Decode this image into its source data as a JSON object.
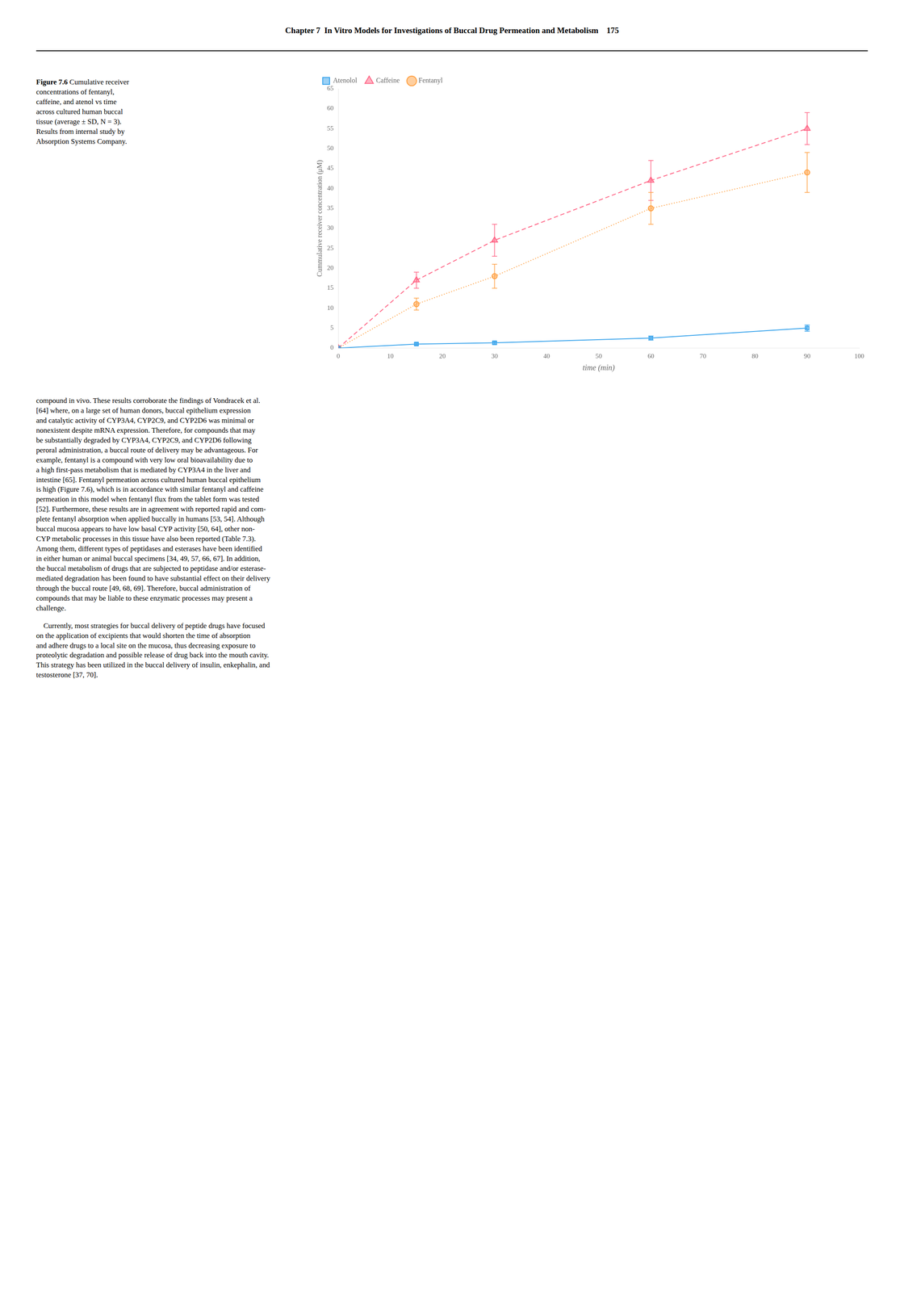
{
  "header": "Chapter 7  In Vitro Models for Investigations of Buccal Drug Permeation and Metabolism    175",
  "caption_bold": "Figure 7.6",
  "caption": " Cumulative receiver\nconcentrations of fentanyl,\ncaffeine, and atenol vs time\nacross cultured human buccal\ntissue (average ± SD, N = 3).\nResults from internal study by\nAbsorption Systems Company.",
  "body": [
    "compound in vivo. These results corroborate the findings of Vondracek et al.\n[64] where, on a large set of human donors, buccal epithelium expression\nand catalytic activity of CYP3A4, CYP2C9, and CYP2D6 was minimal or\nnonexistent despite mRNA expression. Therefore, for compounds that may\nbe substantially degraded by CYP3A4, CYP2C9, and CYP2D6 following\nperoral administration, a buccal route of delivery may be advantageous. For\nexample, fentanyl is a compound with very low oral bioavailability due to\na high first-pass metabolism that is mediated by CYP3A4 in the liver and\nintestine [65]. Fentanyl permeation across cultured human buccal epithelium\nis high (Figure 7.6), which is in accordance with similar fentanyl and caffeine\npermeation in this model when fentanyl flux from the tablet form was tested\n[52]. Furthermore, these results are in agreement with reported rapid and com-\nplete fentanyl absorption when applied buccally in humans [53, 54]. Although\nbuccal mucosa appears to have low basal CYP activity [50, 64], other non-\nCYP metabolic processes in this tissue have also been reported (Table 7.3).\nAmong them, different types of peptidases and esterases have been identified\nin either human or animal buccal specimens [34, 49, 57, 66, 67]. In addition,\nthe buccal metabolism of drugs that are subjected to peptidase and/or esterase-\nmediated degradation has been found to have substantial effect on their delivery\nthrough the buccal route [49, 68, 69]. Therefore, buccal administration of\ncompounds that may be liable to these enzymatic processes may present a\nchallenge.",
    "    Currently, most strategies for buccal delivery of peptide drugs have focused\non the application of excipients that would shorten the time of absorption\nand adhere drugs to a local site on the mucosa, thus decreasing exposure to\nproteolytic degradation and possible release of drug back into the mouth cavity.\nThis strategy has been utilized in the buccal delivery of insulin, enkephalin, and\ntestosterone [37, 70]."
  ],
  "chart_data": {
    "type": "line",
    "xlabel": "time (min)",
    "ylabel": "Cummulative receiver concentration (μM)",
    "xlim": [
      0,
      100
    ],
    "ylim": [
      0,
      65
    ],
    "xticks": [
      0,
      10,
      20,
      30,
      40,
      50,
      60,
      70,
      80,
      90,
      100
    ],
    "yticks": [
      0,
      5,
      10,
      15,
      20,
      25,
      30,
      35,
      40,
      45,
      50,
      55,
      60,
      65
    ],
    "grid": false,
    "legend": "upper left",
    "x": [
      0,
      15,
      30,
      60,
      90
    ],
    "series": [
      {
        "name": "Atenolol",
        "values": [
          0,
          1.0,
          1.3,
          2.5,
          5.0
        ],
        "errors": [
          0,
          0.3,
          0.4,
          0.5,
          0.8
        ],
        "marker": "square",
        "line_style": "solid"
      },
      {
        "name": "Caffeine",
        "values": [
          0,
          17,
          27,
          42,
          55
        ],
        "errors": [
          0,
          2,
          4,
          5,
          4
        ],
        "marker": "triangle",
        "line_style": "dashed"
      },
      {
        "name": "Fentanyl",
        "values": [
          0,
          11,
          18,
          35,
          44
        ],
        "errors": [
          0,
          1.5,
          3,
          4,
          5
        ],
        "marker": "circle",
        "line_style": "dotted"
      }
    ]
  }
}
